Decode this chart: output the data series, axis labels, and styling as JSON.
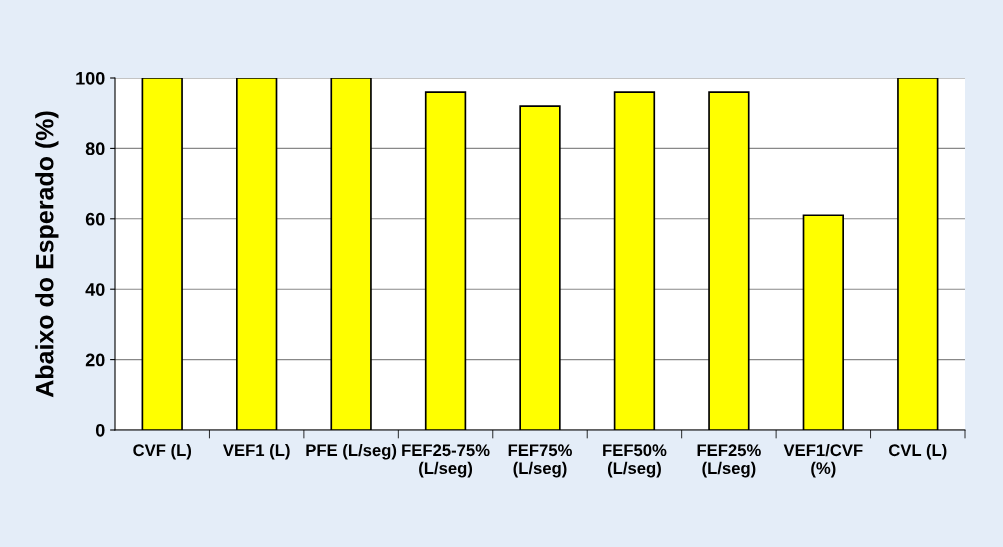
{
  "chart_data": {
    "type": "bar",
    "ylabel": "Abaixo do Esperado (%)",
    "categories": [
      "CVF (L)",
      "VEF1 (L)",
      "PFE (L/seg)",
      "FEF25-75%\n(L/seg)",
      "FEF75%\n(L/seg)",
      "FEF50%\n(L/seg)",
      "FEF25%\n(L/seg)",
      "VEF1/CVF\n(%)",
      "CVL (L)"
    ],
    "values": [
      100,
      100,
      100,
      96,
      92,
      96,
      96,
      61,
      100
    ],
    "color": "#ffff00",
    "ylim": [
      0,
      100
    ],
    "yticks": [
      0,
      20,
      40,
      60,
      80,
      100
    ],
    "grid": "y",
    "legend": false
  }
}
